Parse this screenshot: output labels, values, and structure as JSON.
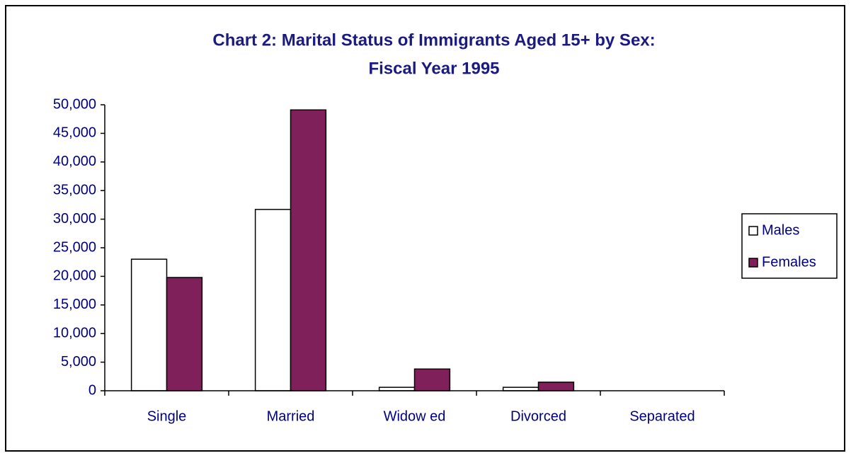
{
  "chart_data": {
    "type": "bar",
    "title": "Chart 2:  Marital Status of Immigrants Aged 15+ by Sex:",
    "subtitle": "Fiscal Year 1995",
    "categories": [
      "Single",
      "Married",
      "Widow ed",
      "Divorced",
      "Separated"
    ],
    "series": [
      {
        "name": "Males",
        "color": "#ffffff",
        "values": [
          23000,
          31700,
          600,
          600,
          0
        ]
      },
      {
        "name": "Females",
        "color": "#80205a",
        "values": [
          19800,
          49100,
          3800,
          1500,
          0
        ]
      }
    ],
    "ylim": [
      0,
      50000
    ],
    "yticks": [
      {
        "value": 0,
        "label": "0"
      },
      {
        "value": 5000,
        "label": "5,000"
      },
      {
        "value": 10000,
        "label": "10,000"
      },
      {
        "value": 15000,
        "label": "15,000"
      },
      {
        "value": 20000,
        "label": "20,000"
      },
      {
        "value": 25000,
        "label": "25,000"
      },
      {
        "value": 30000,
        "label": "30,000"
      },
      {
        "value": 35000,
        "label": "35,000"
      },
      {
        "value": 40000,
        "label": "40,000"
      },
      {
        "value": 45000,
        "label": "45,000"
      },
      {
        "value": 50000,
        "label": "50,000"
      }
    ],
    "grid": false,
    "legend": "right"
  }
}
